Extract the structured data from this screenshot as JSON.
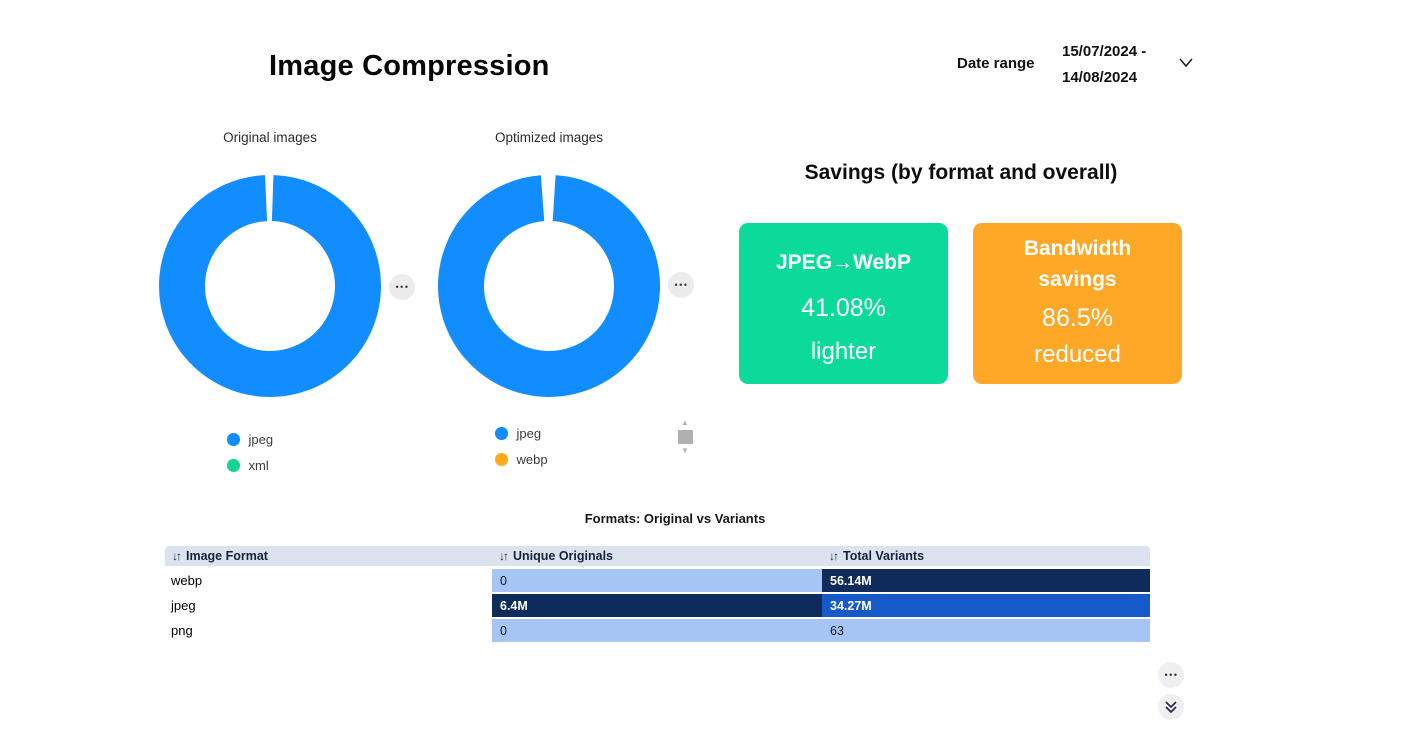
{
  "header": {
    "title": "Image Compression",
    "date_range": {
      "label": "Date range",
      "line1": "15/07/2024 -",
      "line2": "14/08/2024"
    }
  },
  "icons": {
    "more_options": "•••",
    "sort": "↓↑",
    "scroll_up": "▲",
    "scroll_down": "▼"
  },
  "savings": {
    "title": "Savings (by format and overall)",
    "cards": [
      {
        "title": "JPEG→WebP",
        "value": "41.08%",
        "footer": "lighter",
        "bg": "#0BDA9B"
      },
      {
        "title": "Bandwidth savings",
        "value": "86.5%",
        "footer": "reduced",
        "bg": "#FFA726"
      }
    ]
  },
  "table_formatting": {
    "rows": [
      {
        "orig": {
          "bg": "#A6C5F5",
          "fg": "#101827",
          "weight": "400"
        },
        "variants": {
          "bg": "#0E2B5C",
          "fg": "#FFFFFF",
          "weight": "700"
        }
      },
      {
        "orig": {
          "bg": "#0E2B5C",
          "fg": "#FFFFFF",
          "weight": "700"
        },
        "variants": {
          "bg": "#1659C9",
          "fg": "#FFFFFF",
          "weight": "700"
        }
      },
      {
        "orig": {
          "bg": "#A6C5F5",
          "fg": "#101827",
          "weight": "400"
        },
        "variants": {
          "bg": "#A6C5F5",
          "fg": "#101827",
          "weight": "400"
        }
      }
    ]
  },
  "chart_data": [
    {
      "type": "pie",
      "donut": true,
      "title": "Original images",
      "labels": [
        "jpeg",
        "xml"
      ],
      "values": [
        98.8,
        1.2
      ],
      "colors": [
        "#118DFF",
        "#17D392"
      ],
      "legend_position": "bottom"
    },
    {
      "type": "pie",
      "donut": true,
      "title": "Optimized images",
      "labels": [
        "jpeg",
        "webp"
      ],
      "values": [
        97.9,
        2.1
      ],
      "colors": [
        "#118DFF",
        "#FEAA19"
      ],
      "legend_position": "bottom"
    },
    {
      "type": "table",
      "title": "Formats: Original vs Variants",
      "columns": [
        "Image Format",
        "Unique Originals",
        "Total Variants"
      ],
      "rows": [
        [
          "webp",
          "0",
          "56.14M"
        ],
        [
          "jpeg",
          "6.4M",
          "34.27M"
        ],
        [
          "png",
          "0",
          "63"
        ]
      ]
    }
  ]
}
